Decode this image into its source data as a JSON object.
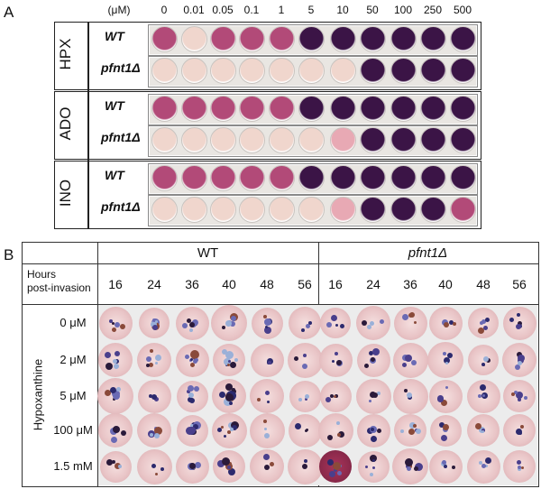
{
  "panel_a": {
    "letter": "A",
    "conc_unit": "(μM)",
    "concentrations": [
      "0",
      "0.01",
      "0.05",
      "0.1",
      "1",
      "5",
      "10",
      "50",
      "100",
      "250",
      "500"
    ],
    "groups": [
      {
        "name": "HPX",
        "strains": [
          "WT",
          "pfnt1Δ"
        ]
      },
      {
        "name": "ADO",
        "strains": [
          "WT",
          "pfnt1Δ"
        ]
      },
      {
        "name": "INO",
        "strains": [
          "WT",
          "pfnt1Δ"
        ]
      }
    ],
    "colors": {
      "pink": "#b24a78",
      "purple": "#3b1446",
      "pale": "#f0d6cd",
      "lightpink": "#e8a9b4"
    }
  },
  "panel_b": {
    "letter": "B",
    "strain_headers": [
      "WT",
      "pfnt1Δ"
    ],
    "hours_label_line1": "Hours",
    "hours_label_line2": "post-invasion",
    "hours": [
      "16",
      "24",
      "36",
      "40",
      "48",
      "56"
    ],
    "row_axis_label": "Hypoxanthine",
    "rows": [
      "0 μM",
      "2 μM",
      "5 μM",
      "100 μM",
      "1.5 mM"
    ]
  }
}
